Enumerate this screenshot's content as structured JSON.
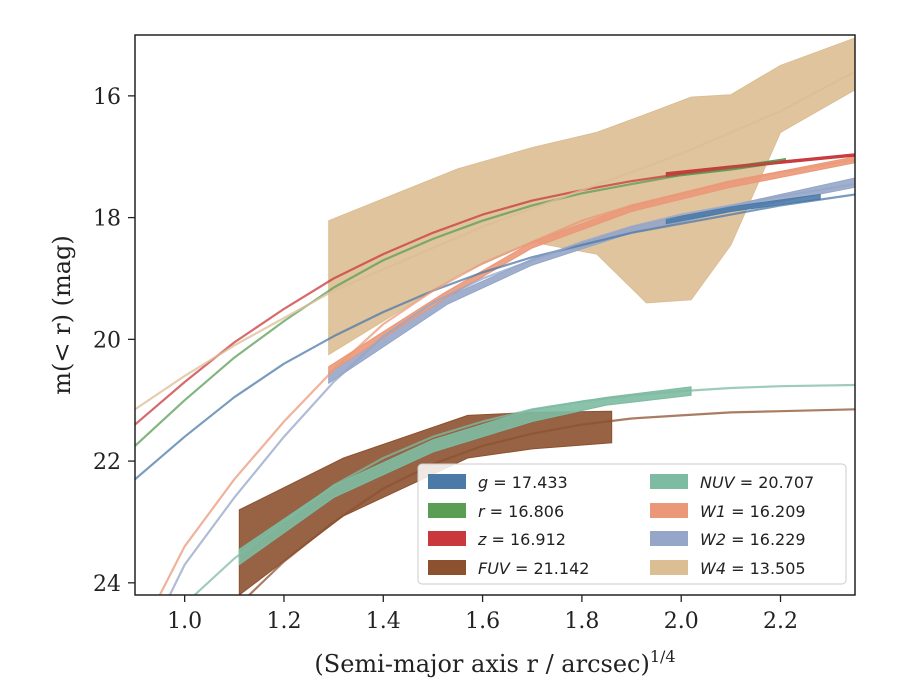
{
  "chart_data": {
    "type": "line",
    "xlabel": "(Semi-major axis r / arcsec)",
    "xlabel_exponent": "1/4",
    "ylabel": "m(< r) (mag)",
    "xlim": [
      0.9,
      2.35
    ],
    "ylim": [
      24.2,
      15.0
    ],
    "xticks": [
      "1.0",
      "1.2",
      "1.4",
      "1.6",
      "1.8",
      "2.0",
      "2.2"
    ],
    "xtick_values": [
      1.0,
      1.2,
      1.4,
      1.6,
      1.8,
      2.0,
      2.2
    ],
    "yticks": [
      "16",
      "18",
      "20",
      "22",
      "24"
    ],
    "ytick_values": [
      16,
      18,
      20,
      22,
      24
    ],
    "legend_position": "lower-right",
    "legend": [
      {
        "band": "g",
        "value": "17.433",
        "color": "#4c7aa8"
      },
      {
        "band": "r",
        "value": "16.806",
        "color": "#5a9e55"
      },
      {
        "band": "z",
        "value": "16.912",
        "color": "#c8383c"
      },
      {
        "band": "FUV",
        "value": "21.142",
        "color": "#8c5230"
      },
      {
        "band": "NUV",
        "value": "20.707",
        "color": "#7dbba2"
      },
      {
        "band": "W1",
        "value": "16.209",
        "color": "#eb9878"
      },
      {
        "band": "W2",
        "value": "16.229",
        "color": "#96a6c8"
      },
      {
        "band": "W4",
        "value": "13.505",
        "color": "#dcbe94"
      }
    ],
    "models": [
      {
        "band": "g",
        "color": "#4c7aa8",
        "points": [
          [
            0.9,
            22.3
          ],
          [
            1.0,
            21.6
          ],
          [
            1.1,
            20.95
          ],
          [
            1.2,
            20.4
          ],
          [
            1.3,
            19.95
          ],
          [
            1.4,
            19.55
          ],
          [
            1.5,
            19.2
          ],
          [
            1.6,
            18.9
          ],
          [
            1.7,
            18.65
          ],
          [
            1.8,
            18.45
          ],
          [
            1.9,
            18.25
          ],
          [
            2.0,
            18.1
          ],
          [
            2.1,
            17.95
          ],
          [
            2.2,
            17.8
          ],
          [
            2.35,
            17.62
          ]
        ]
      },
      {
        "band": "r",
        "color": "#5a9e55",
        "points": [
          [
            0.9,
            21.75
          ],
          [
            1.0,
            21.0
          ],
          [
            1.1,
            20.3
          ],
          [
            1.2,
            19.7
          ],
          [
            1.3,
            19.15
          ],
          [
            1.4,
            18.7
          ],
          [
            1.5,
            18.35
          ],
          [
            1.6,
            18.05
          ],
          [
            1.7,
            17.8
          ],
          [
            1.8,
            17.6
          ],
          [
            1.9,
            17.45
          ],
          [
            2.0,
            17.3
          ],
          [
            2.1,
            17.18
          ],
          [
            2.2,
            17.08
          ]
        ]
      },
      {
        "band": "z",
        "color": "#c8383c",
        "points": [
          [
            0.9,
            21.4
          ],
          [
            1.0,
            20.7
          ],
          [
            1.1,
            20.05
          ],
          [
            1.2,
            19.5
          ],
          [
            1.3,
            19.0
          ],
          [
            1.4,
            18.6
          ],
          [
            1.5,
            18.25
          ],
          [
            1.6,
            17.95
          ],
          [
            1.7,
            17.72
          ],
          [
            1.8,
            17.55
          ],
          [
            1.9,
            17.4
          ],
          [
            2.0,
            17.28
          ],
          [
            2.1,
            17.18
          ],
          [
            2.2,
            17.08
          ],
          [
            2.35,
            16.98
          ]
        ]
      },
      {
        "band": "NUV",
        "color": "#7dbba2",
        "points": [
          [
            1.02,
            24.2
          ],
          [
            1.1,
            23.6
          ],
          [
            1.2,
            23.0
          ],
          [
            1.3,
            22.4
          ],
          [
            1.4,
            21.95
          ],
          [
            1.5,
            21.6
          ],
          [
            1.6,
            21.35
          ],
          [
            1.7,
            21.15
          ],
          [
            1.8,
            21.02
          ],
          [
            1.9,
            20.92
          ],
          [
            2.0,
            20.85
          ],
          [
            2.1,
            20.8
          ],
          [
            2.2,
            20.77
          ],
          [
            2.35,
            20.75
          ]
        ]
      },
      {
        "band": "FUV",
        "color": "#8c5230",
        "points": [
          [
            1.13,
            24.2
          ],
          [
            1.2,
            23.65
          ],
          [
            1.3,
            23.0
          ],
          [
            1.4,
            22.45
          ],
          [
            1.5,
            22.05
          ],
          [
            1.6,
            21.75
          ],
          [
            1.7,
            21.55
          ],
          [
            1.8,
            21.4
          ],
          [
            1.9,
            21.3
          ],
          [
            2.0,
            21.25
          ],
          [
            2.1,
            21.2
          ],
          [
            2.2,
            21.18
          ],
          [
            2.35,
            21.15
          ]
        ]
      },
      {
        "band": "W1",
        "color": "#eb9878",
        "points": [
          [
            0.95,
            24.2
          ],
          [
            1.0,
            23.4
          ],
          [
            1.1,
            22.3
          ],
          [
            1.2,
            21.35
          ],
          [
            1.3,
            20.5
          ],
          [
            1.4,
            19.75
          ],
          [
            1.5,
            19.2
          ],
          [
            1.6,
            18.75
          ],
          [
            1.7,
            18.4
          ],
          [
            1.8,
            18.05
          ],
          [
            1.9,
            17.8
          ],
          [
            2.0,
            17.6
          ],
          [
            2.1,
            17.4
          ],
          [
            2.2,
            17.25
          ],
          [
            2.35,
            17.05
          ]
        ]
      },
      {
        "band": "W2",
        "color": "#96a6c8",
        "points": [
          [
            0.97,
            24.2
          ],
          [
            1.0,
            23.7
          ],
          [
            1.1,
            22.6
          ],
          [
            1.2,
            21.6
          ],
          [
            1.3,
            20.7
          ],
          [
            1.4,
            19.95
          ],
          [
            1.5,
            19.4
          ],
          [
            1.6,
            19.0
          ],
          [
            1.7,
            18.7
          ],
          [
            1.8,
            18.4
          ],
          [
            1.9,
            18.15
          ],
          [
            2.0,
            17.95
          ],
          [
            2.1,
            17.8
          ],
          [
            2.2,
            17.65
          ],
          [
            2.35,
            17.45
          ]
        ]
      },
      {
        "band": "W4",
        "color": "#dcbe94",
        "points": [
          [
            0.9,
            21.15
          ],
          [
            1.0,
            20.6
          ],
          [
            1.1,
            20.1
          ],
          [
            1.2,
            19.65
          ],
          [
            1.3,
            19.2
          ],
          [
            1.4,
            18.85
          ],
          [
            1.5,
            18.5
          ],
          [
            1.6,
            18.15
          ],
          [
            1.7,
            17.85
          ],
          [
            1.8,
            17.55
          ],
          [
            1.9,
            17.25
          ],
          [
            2.0,
            16.95
          ],
          [
            2.1,
            16.6
          ],
          [
            2.2,
            16.25
          ],
          [
            2.35,
            15.6
          ]
        ]
      }
    ],
    "data_bands": [
      {
        "band": "W4",
        "color": "#dcbe94",
        "upper": [
          [
            1.29,
            18.05
          ],
          [
            1.55,
            17.2
          ],
          [
            1.7,
            16.85
          ],
          [
            1.83,
            16.6
          ],
          [
            1.93,
            16.3
          ],
          [
            2.02,
            16.02
          ],
          [
            2.1,
            15.98
          ],
          [
            2.2,
            15.5
          ],
          [
            2.35,
            15.05
          ]
        ],
        "lower": [
          [
            1.29,
            20.25
          ],
          [
            1.55,
            18.95
          ],
          [
            1.7,
            18.4
          ],
          [
            1.83,
            18.6
          ],
          [
            1.93,
            19.4
          ],
          [
            2.02,
            19.35
          ],
          [
            2.1,
            18.45
          ],
          [
            2.2,
            16.6
          ],
          [
            2.35,
            15.9
          ]
        ]
      },
      {
        "band": "FUV",
        "color": "#8c5230",
        "upper": [
          [
            1.11,
            22.8
          ],
          [
            1.32,
            21.95
          ],
          [
            1.57,
            21.25
          ],
          [
            1.7,
            21.2
          ],
          [
            1.86,
            21.18
          ]
        ],
        "lower": [
          [
            1.11,
            24.2
          ],
          [
            1.32,
            22.9
          ],
          [
            1.57,
            21.95
          ],
          [
            1.7,
            21.8
          ],
          [
            1.86,
            21.7
          ]
        ]
      },
      {
        "band": "NUV",
        "color": "#7dbba2",
        "upper": [
          [
            1.11,
            23.45
          ],
          [
            1.3,
            22.4
          ],
          [
            1.5,
            21.65
          ],
          [
            1.7,
            21.15
          ],
          [
            1.85,
            20.95
          ],
          [
            2.02,
            20.78
          ]
        ],
        "lower": [
          [
            1.11,
            23.7
          ],
          [
            1.3,
            22.6
          ],
          [
            1.5,
            21.85
          ],
          [
            1.7,
            21.35
          ],
          [
            1.85,
            21.08
          ],
          [
            2.02,
            20.92
          ]
        ]
      },
      {
        "band": "W2",
        "color": "#96a6c8",
        "upper": [
          [
            1.29,
            20.55
          ],
          [
            1.53,
            19.3
          ],
          [
            1.7,
            18.68
          ],
          [
            1.9,
            18.15
          ],
          [
            2.1,
            17.8
          ],
          [
            2.35,
            17.35
          ]
        ],
        "lower": [
          [
            1.29,
            20.72
          ],
          [
            1.53,
            19.42
          ],
          [
            1.7,
            18.78
          ],
          [
            1.9,
            18.25
          ],
          [
            2.1,
            17.9
          ],
          [
            2.35,
            17.5
          ]
        ]
      },
      {
        "band": "W1",
        "color": "#eb9878",
        "upper": [
          [
            1.29,
            20.45
          ],
          [
            1.52,
            19.25
          ],
          [
            1.7,
            18.4
          ],
          [
            1.9,
            17.8
          ],
          [
            2.1,
            17.4
          ],
          [
            2.35,
            17.0
          ]
        ],
        "lower": [
          [
            1.29,
            20.55
          ],
          [
            1.52,
            19.35
          ],
          [
            1.7,
            18.5
          ],
          [
            1.9,
            17.9
          ],
          [
            2.1,
            17.5
          ],
          [
            2.35,
            17.1
          ]
        ]
      },
      {
        "band": "g",
        "color": "#4c7aa8",
        "upper": [
          [
            1.97,
            18.02
          ],
          [
            2.1,
            17.82
          ],
          [
            2.28,
            17.62
          ]
        ],
        "lower": [
          [
            1.97,
            18.1
          ],
          [
            2.1,
            17.9
          ],
          [
            2.28,
            17.7
          ]
        ]
      },
      {
        "band": "r",
        "color": "#5a9e55",
        "upper": [
          [
            1.97,
            17.28
          ],
          [
            2.1,
            17.16
          ],
          [
            2.21,
            17.03
          ]
        ],
        "lower": [
          [
            1.97,
            17.34
          ],
          [
            2.1,
            17.22
          ],
          [
            2.21,
            17.09
          ]
        ]
      },
      {
        "band": "z",
        "color": "#c8383c",
        "upper": [
          [
            1.97,
            17.26
          ],
          [
            2.1,
            17.15
          ],
          [
            2.35,
            16.95
          ]
        ],
        "lower": [
          [
            1.97,
            17.3
          ],
          [
            2.1,
            17.19
          ],
          [
            2.35,
            16.99
          ]
        ]
      }
    ]
  }
}
